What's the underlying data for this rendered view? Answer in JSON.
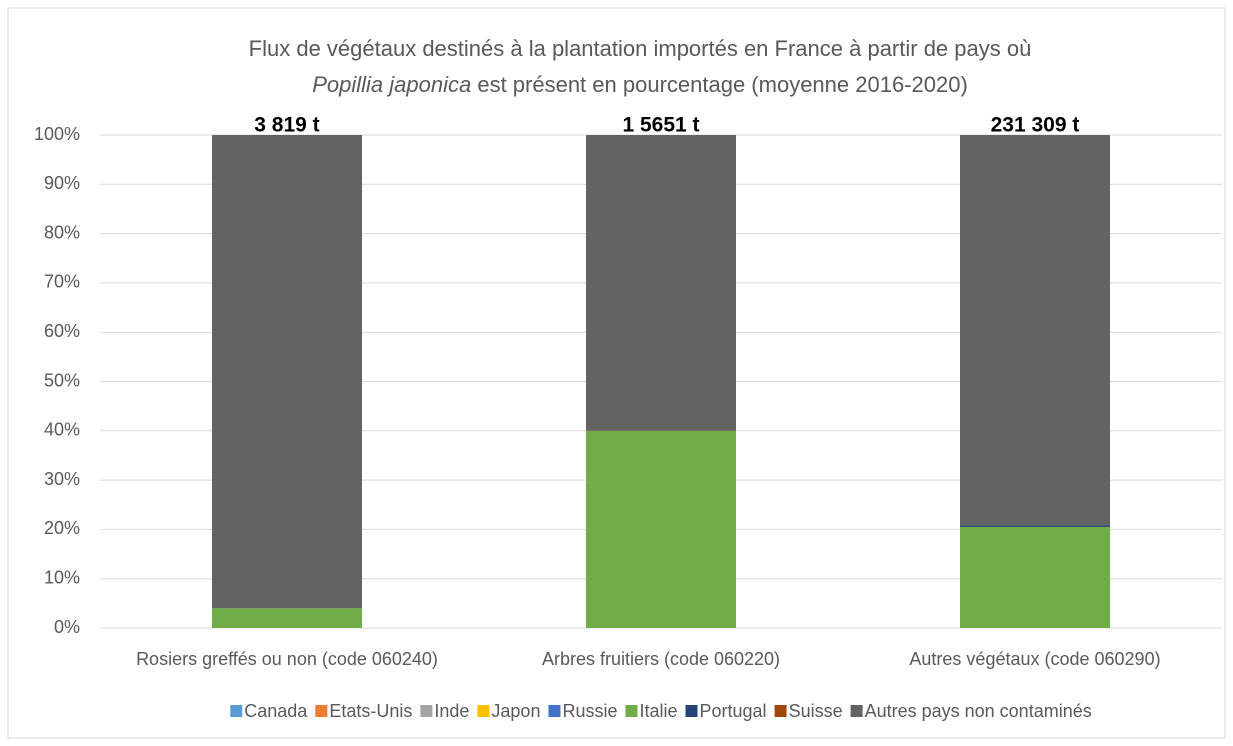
{
  "chart_data": {
    "type": "stacked_bar",
    "title": [
      "Flux de végétaux destinés à la plantation importés en France à partir de pays où",
      "Popillia japonica",
      " est présent en pourcentage (moyenne 2016-2020)"
    ],
    "categories": [
      "Rosiers greffés ou non (code 060240)",
      "Arbres fruitiers (code 060220)",
      "Autres végétaux (code 060290)"
    ],
    "annotations": [
      "3 819 t",
      "1 5651 t",
      "231 309 t"
    ],
    "series": [
      {
        "name": "Canada",
        "color": "#5b9bd5",
        "values": [
          0,
          0,
          0
        ]
      },
      {
        "name": "Etats-Unis",
        "color": "#ed7d31",
        "values": [
          0,
          0,
          0
        ]
      },
      {
        "name": "Inde",
        "color": "#a5a5a5",
        "values": [
          0,
          0,
          0
        ]
      },
      {
        "name": "Japon",
        "color": "#ffc000",
        "values": [
          0,
          0,
          0
        ]
      },
      {
        "name": "Russie",
        "color": "#4472c4",
        "values": [
          0,
          0,
          0
        ]
      },
      {
        "name": "Italie",
        "color": "#70ad47",
        "values": [
          4,
          40,
          20.5
        ]
      },
      {
        "name": "Portugal",
        "color": "#264478",
        "values": [
          0,
          0,
          0.3
        ]
      },
      {
        "name": "Suisse",
        "color": "#9e480e",
        "values": [
          0,
          0,
          0
        ]
      },
      {
        "name": "Autres pays non contaminés",
        "color": "#636363",
        "values": [
          96,
          60,
          79.2
        ]
      }
    ],
    "ylim": [
      0,
      100
    ],
    "yticks": [
      {
        "value": 0,
        "label": "0%"
      },
      {
        "value": 10,
        "label": "10%"
      },
      {
        "value": 20,
        "label": "20%"
      },
      {
        "value": 30,
        "label": "30%"
      },
      {
        "value": 40,
        "label": "40%"
      },
      {
        "value": 50,
        "label": "50%"
      },
      {
        "value": 60,
        "label": "60%"
      },
      {
        "value": 70,
        "label": "70%"
      },
      {
        "value": 80,
        "label": "80%"
      },
      {
        "value": 90,
        "label": "90%"
      },
      {
        "value": 100,
        "label": "100%"
      }
    ],
    "grid": true,
    "legend": "bottom"
  }
}
